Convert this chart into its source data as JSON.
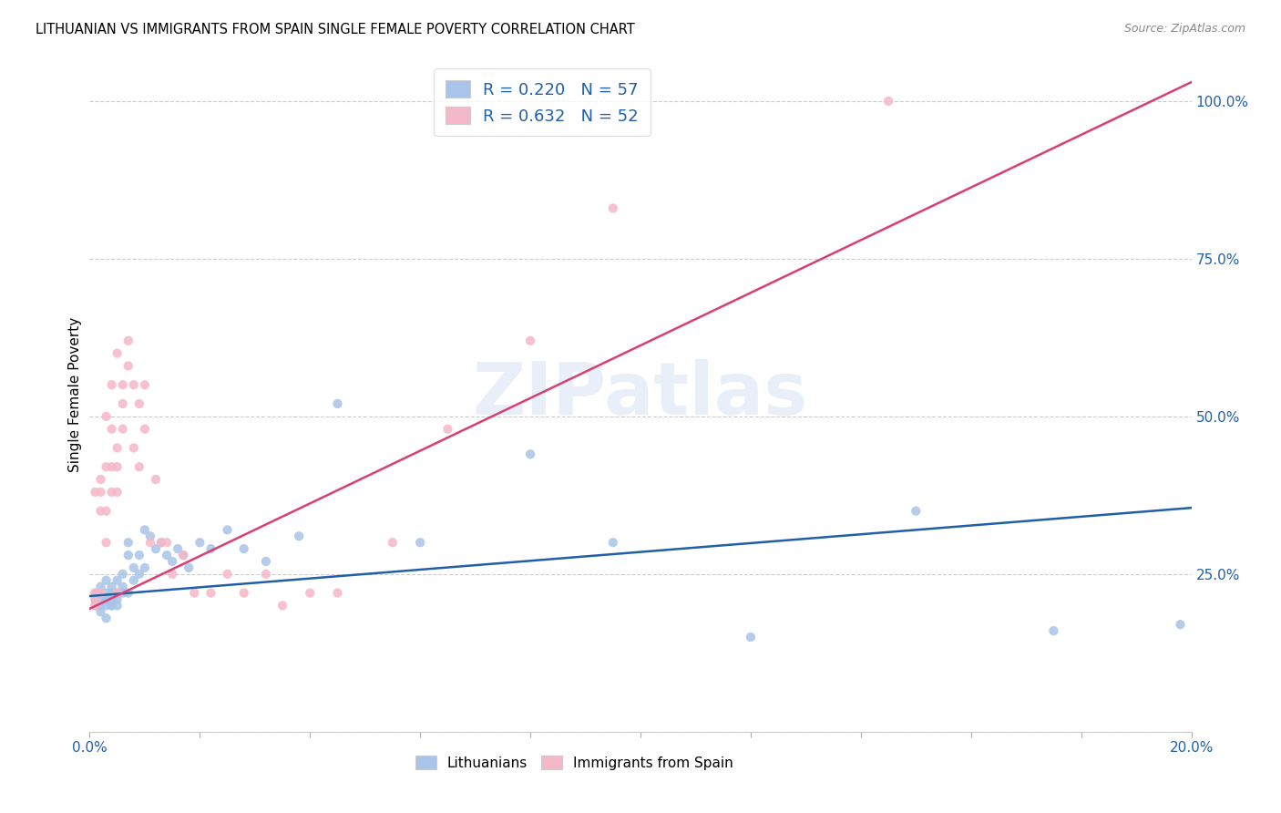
{
  "title": "LITHUANIAN VS IMMIGRANTS FROM SPAIN SINGLE FEMALE POVERTY CORRELATION CHART",
  "source": "Source: ZipAtlas.com",
  "ylabel": "Single Female Poverty",
  "right_yticks": [
    0.0,
    0.25,
    0.5,
    0.75,
    1.0
  ],
  "right_yticklabels": [
    "",
    "25.0%",
    "50.0%",
    "75.0%",
    "100.0%"
  ],
  "xlim": [
    0.0,
    0.2
  ],
  "ylim": [
    0.0,
    1.07
  ],
  "r_blue": 0.22,
  "n_blue": 57,
  "r_pink": 0.632,
  "n_pink": 52,
  "blue_color": "#a8c4e8",
  "pink_color": "#f5b8c8",
  "blue_line_color": "#2060a8",
  "pink_line_color": "#d84070",
  "legend_r_color": "#2060a8",
  "watermark": "ZIPatlas",
  "blue_line_x0": 0.0,
  "blue_line_y0": 0.215,
  "blue_line_x1": 0.2,
  "blue_line_y1": 0.355,
  "pink_line_x0": 0.0,
  "pink_line_y0": 0.195,
  "pink_line_x1": 0.2,
  "pink_line_y1": 1.03,
  "blue_scatter_x": [
    0.001,
    0.001,
    0.001,
    0.002,
    0.002,
    0.002,
    0.002,
    0.002,
    0.003,
    0.003,
    0.003,
    0.003,
    0.003,
    0.003,
    0.004,
    0.004,
    0.004,
    0.004,
    0.004,
    0.005,
    0.005,
    0.005,
    0.005,
    0.006,
    0.006,
    0.006,
    0.007,
    0.007,
    0.007,
    0.008,
    0.008,
    0.009,
    0.009,
    0.01,
    0.01,
    0.011,
    0.012,
    0.013,
    0.014,
    0.015,
    0.016,
    0.017,
    0.018,
    0.02,
    0.022,
    0.025,
    0.028,
    0.032,
    0.038,
    0.045,
    0.06,
    0.08,
    0.095,
    0.12,
    0.15,
    0.175,
    0.198
  ],
  "blue_scatter_y": [
    0.21,
    0.22,
    0.2,
    0.19,
    0.21,
    0.22,
    0.23,
    0.2,
    0.18,
    0.2,
    0.21,
    0.22,
    0.24,
    0.21,
    0.2,
    0.22,
    0.23,
    0.21,
    0.2,
    0.22,
    0.24,
    0.21,
    0.2,
    0.22,
    0.25,
    0.23,
    0.3,
    0.28,
    0.22,
    0.26,
    0.24,
    0.28,
    0.25,
    0.32,
    0.26,
    0.31,
    0.29,
    0.3,
    0.28,
    0.27,
    0.29,
    0.28,
    0.26,
    0.3,
    0.29,
    0.32,
    0.29,
    0.27,
    0.31,
    0.52,
    0.3,
    0.44,
    0.3,
    0.15,
    0.35,
    0.16,
    0.17
  ],
  "pink_scatter_x": [
    0.001,
    0.001,
    0.001,
    0.001,
    0.002,
    0.002,
    0.002,
    0.002,
    0.002,
    0.003,
    0.003,
    0.003,
    0.003,
    0.004,
    0.004,
    0.004,
    0.004,
    0.005,
    0.005,
    0.005,
    0.005,
    0.005,
    0.006,
    0.006,
    0.006,
    0.007,
    0.007,
    0.008,
    0.008,
    0.009,
    0.009,
    0.01,
    0.01,
    0.011,
    0.012,
    0.013,
    0.014,
    0.015,
    0.017,
    0.019,
    0.022,
    0.025,
    0.028,
    0.032,
    0.035,
    0.04,
    0.045,
    0.055,
    0.065,
    0.08,
    0.095,
    0.145
  ],
  "pink_scatter_y": [
    0.21,
    0.22,
    0.38,
    0.2,
    0.35,
    0.38,
    0.4,
    0.22,
    0.22,
    0.3,
    0.42,
    0.35,
    0.5,
    0.38,
    0.42,
    0.48,
    0.55,
    0.45,
    0.42,
    0.38,
    0.6,
    0.22,
    0.55,
    0.52,
    0.48,
    0.62,
    0.58,
    0.55,
    0.45,
    0.52,
    0.42,
    0.55,
    0.48,
    0.3,
    0.4,
    0.3,
    0.3,
    0.25,
    0.28,
    0.22,
    0.22,
    0.25,
    0.22,
    0.25,
    0.2,
    0.22,
    0.22,
    0.3,
    0.48,
    0.62,
    0.83,
    1.0
  ]
}
